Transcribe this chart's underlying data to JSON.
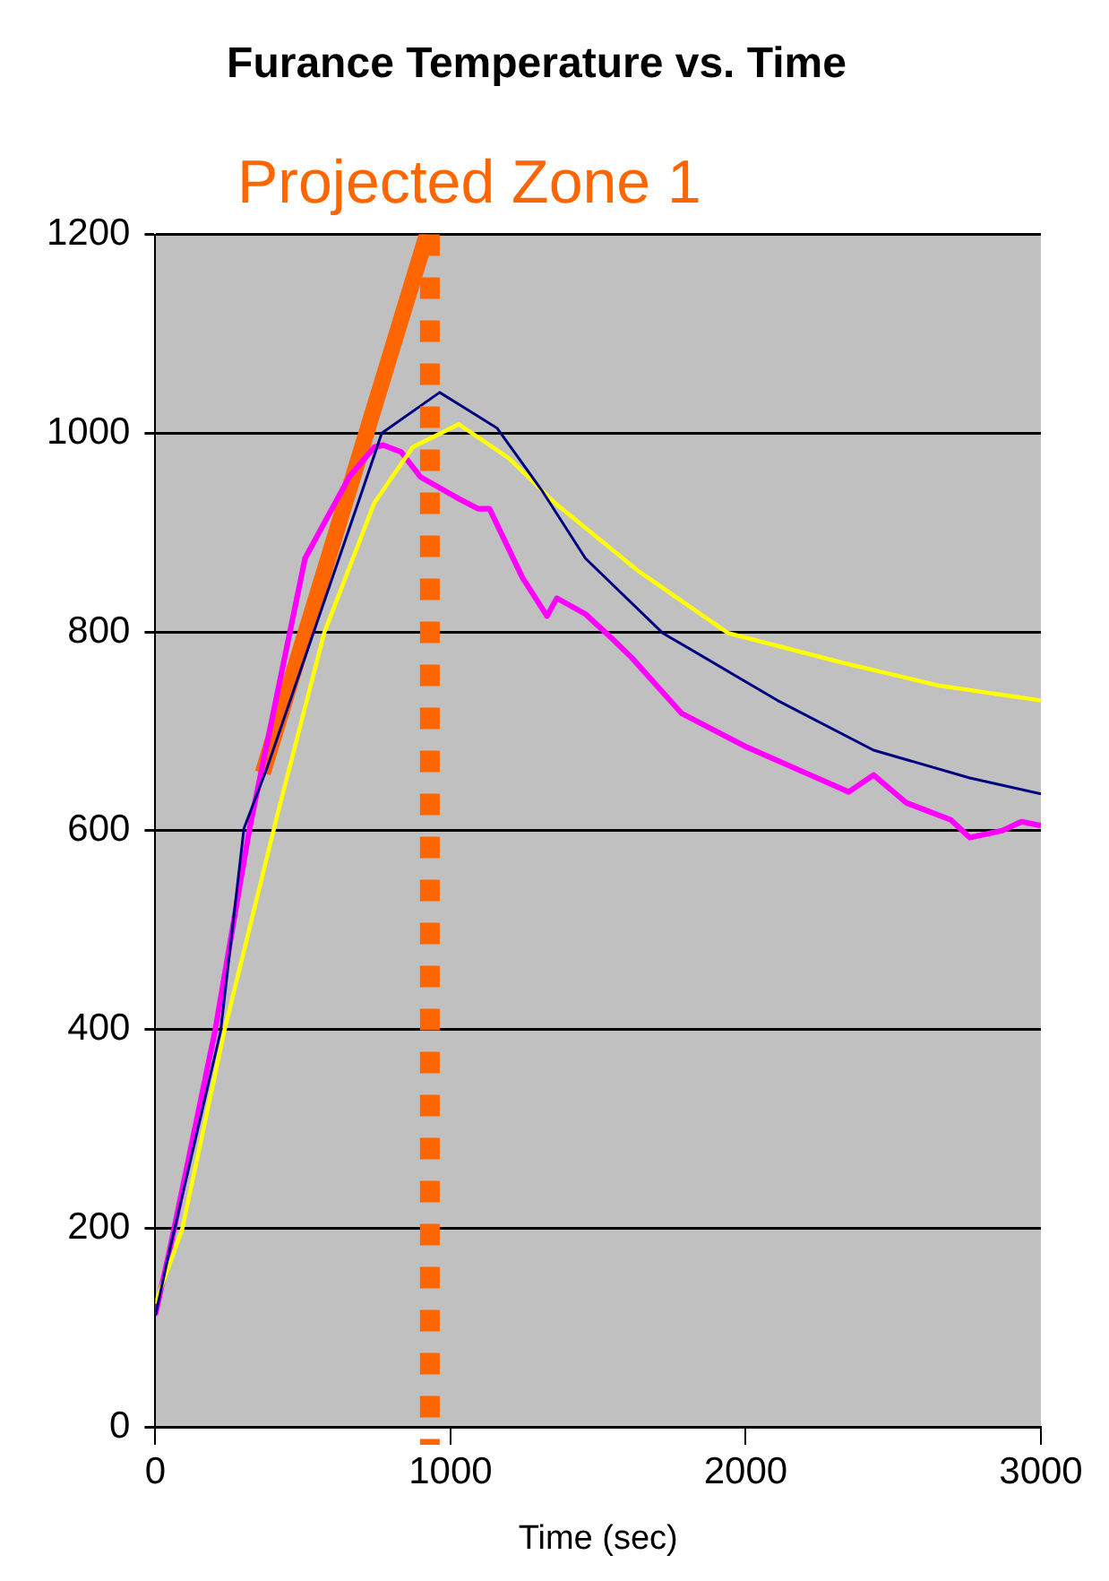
{
  "chart_data": {
    "type": "line",
    "title": "Furance Temperature vs. Time",
    "xlabel": "Time (sec)",
    "xlim": [
      0,
      3000
    ],
    "xticks": [
      0,
      1000,
      2000,
      3000
    ],
    "ylim": [
      0,
      1200
    ],
    "yticks": [
      0,
      200,
      400,
      600,
      800,
      1000,
      1200
    ],
    "grid": "y",
    "marker": "none",
    "series": [
      {
        "color": "#000080",
        "x": [
          0,
          50,
          221,
          300,
          377,
          702,
          767,
          963,
          1158,
          1308,
          1457,
          1718,
          2108,
          2433,
          2759,
          3000
        ],
        "values": [
          112,
          180,
          398,
          602,
          662,
          943,
          1000,
          1041,
          1005,
          943,
          874,
          799,
          731,
          681,
          653,
          637
        ]
      },
      {
        "color": "#ffff00",
        "x": [
          0,
          91,
          234,
          410,
          572,
          742,
          872,
          1028,
          1197,
          1353,
          1633,
          1939,
          2329,
          2655,
          3000
        ],
        "values": [
          124,
          199,
          399,
          612,
          799,
          930,
          986,
          1009,
          975,
          930,
          862,
          799,
          769,
          746,
          731
        ]
      },
      {
        "color": "#ff00ff",
        "x": [
          0,
          50,
          202,
          319,
          507,
          657,
          742,
          772,
          833,
          898,
          1028,
          1093,
          1132,
          1243,
          1327,
          1360,
          1457,
          1548,
          1614,
          1783,
          2004,
          2219,
          2349,
          2433,
          2544,
          2694,
          2759,
          2869,
          2934,
          3000
        ],
        "values": [
          113,
          180,
          398,
          602,
          874,
          956,
          986,
          988,
          981,
          956,
          934,
          924,
          924,
          855,
          816,
          834,
          818,
          793,
          774,
          718,
          684,
          656,
          639,
          656,
          628,
          611,
          593,
          600,
          609,
          605
        ]
      },
      {
        "type": "line",
        "color": "#ff6600",
        "x": [
          364,
          920
        ],
        "values": [
          658,
          1200
        ]
      }
    ],
    "ref_lines": [
      {
        "axis": "x",
        "value": 930,
        "label": "Projected Zone 1",
        "color": "#ff6600",
        "line_style": "dotted"
      }
    ]
  }
}
